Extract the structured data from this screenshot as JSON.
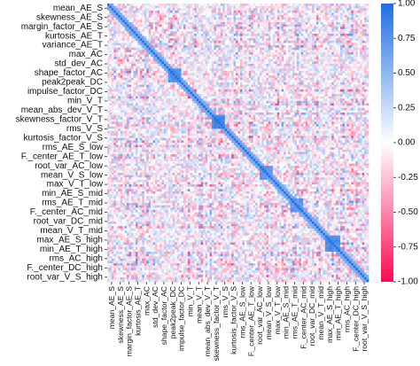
{
  "chart_data": {
    "type": "heatmap",
    "title": "",
    "xlabel": "",
    "ylabel": "",
    "row_labels": [
      "mean_AE_S",
      "skewness_AE_S",
      "margin_factor_AE_S",
      "kurtosis_AE_T",
      "variance_AE_T",
      "max_AC",
      "std_dev_AC",
      "shape_factor_AC",
      "peak2peak_DC",
      "impulse_factor_DC",
      "min_V_T",
      "mean_abs_dev_V_T",
      "skewness_factor_V_T",
      "rms_V_S",
      "kurtosis_factor_V_S",
      "rms_AE_S_low",
      "F._center_AE_T_low",
      "root_var_AC_low",
      "mean_V_S_low",
      "max_V_T_low",
      "min_AE_S_mid",
      "rms_AE_T_mid",
      "F._center_AC_mid",
      "root_var_DC_mid",
      "mean_V_T_mid",
      "max_AE_S_high",
      "min_AE_T_high",
      "rms_AC_high",
      "F._center_DC_high",
      "root_var_V_S_high"
    ],
    "column_labels": [
      "mean_AE_S",
      "skewness_AE_S",
      "margin_factor_AE_S",
      "kurtosis_AE_T",
      "max_AC",
      "std_dev_AC",
      "shape_factor_AC",
      "peak2peak_DC",
      "impulse_factor_DC",
      "min_V_T",
      "mean_V_T",
      "mean_abs_dev_V_T",
      "skewness_factor_V_T",
      "rms_V_S",
      "kurtosis_factor_V_S",
      "rms_AE_S_low",
      "F._center_AE_T_low",
      "root_var_AC_low",
      "mean_V_S_low",
      "max_V_T_low",
      "min_AE_S_mid",
      "rms_AE_T_mid",
      "F._center_AC_mid",
      "root_var_DC_mid",
      "mean_V_T_mid",
      "max_AE_S_high",
      "min_AE_T_high",
      "rms_AC_high",
      "F._center_DC_high",
      "root_var_V_S_high"
    ],
    "value_range": [
      -1.0,
      1.0
    ],
    "colorbar_ticks": [
      "1.00",
      "0.75",
      "0.50",
      "0.25",
      "0.00",
      "-0.25",
      "-0.50",
      "-0.75",
      "-1.00"
    ],
    "colormap": {
      "negative": "#ff0a54",
      "zero": "#ffffff",
      "positive": "#1f6fe5"
    },
    "diagonal_value": 1.0,
    "blocks": [
      {
        "rows": "shape_factor_AC to impulse_factor_DC",
        "value": 0.85
      },
      {
        "rows": "mean_abs_dev_V_T to skewness_factor_V_T",
        "value": 0.9
      },
      {
        "rows": "mean_V_S_low to max_V_T_low",
        "value": 0.8
      },
      {
        "rows": "min_AE_S_mid to rms_AE_T_mid",
        "value": 0.8
      },
      {
        "rows": "max_AE_S_high to min_AE_T_high",
        "value": 0.85
      }
    ]
  }
}
